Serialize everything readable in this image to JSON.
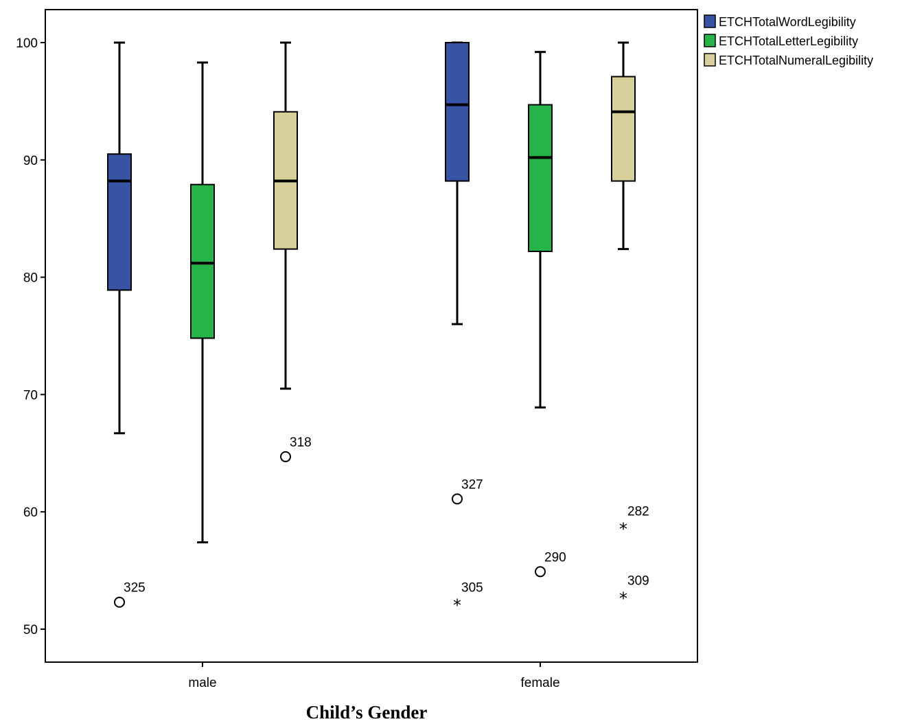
{
  "chart_data": {
    "type": "boxplot",
    "xlabel": "Child’s Gender",
    "ylabel": "",
    "ylim": [
      47,
      103
    ],
    "yticks": [
      50,
      60,
      70,
      80,
      90,
      100
    ],
    "grid": false,
    "legend_placement": "top-right-outside",
    "categories": [
      "male",
      "female"
    ],
    "series": [
      {
        "name": "ETCHTotalWordLegibility",
        "color": "#3853a4",
        "boxes": [
          {
            "category": "male",
            "whisker_low": 66.7,
            "q1": 78.9,
            "median": 88.2,
            "q3": 90.5,
            "whisker_high": 100,
            "outliers": [
              {
                "value": 52.3,
                "label": "325",
                "marker": "circle"
              }
            ]
          },
          {
            "category": "female",
            "whisker_low": 76.0,
            "q1": 88.2,
            "median": 94.7,
            "q3": 100,
            "whisker_high": 100,
            "outliers": [
              {
                "value": 61.1,
                "label": "327",
                "marker": "circle"
              },
              {
                "value": 52.3,
                "label": "305",
                "marker": "star"
              }
            ]
          }
        ]
      },
      {
        "name": "ETCHTotalLetterLegibility",
        "color": "#26b34a",
        "boxes": [
          {
            "category": "male",
            "whisker_low": 57.4,
            "q1": 74.8,
            "median": 81.2,
            "q3": 87.9,
            "whisker_high": 98.3,
            "outliers": []
          },
          {
            "category": "female",
            "whisker_low": 68.9,
            "q1": 82.2,
            "median": 90.2,
            "q3": 94.7,
            "whisker_high": 99.2,
            "outliers": [
              {
                "value": 54.9,
                "label": "290",
                "marker": "circle"
              }
            ]
          }
        ]
      },
      {
        "name": "ETCHTotalNumeralLegibility",
        "color": "#d8d09a",
        "boxes": [
          {
            "category": "male",
            "whisker_low": 70.5,
            "q1": 82.4,
            "median": 88.2,
            "q3": 94.1,
            "whisker_high": 100,
            "outliers": [
              {
                "value": 64.7,
                "label": "318",
                "marker": "circle"
              }
            ]
          },
          {
            "category": "female",
            "whisker_low": 82.4,
            "q1": 88.2,
            "median": 94.1,
            "q3": 97.1,
            "whisker_high": 100,
            "outliers": [
              {
                "value": 58.8,
                "label": "282",
                "marker": "star"
              },
              {
                "value": 52.9,
                "label": "309",
                "marker": "star"
              }
            ]
          }
        ]
      }
    ]
  }
}
